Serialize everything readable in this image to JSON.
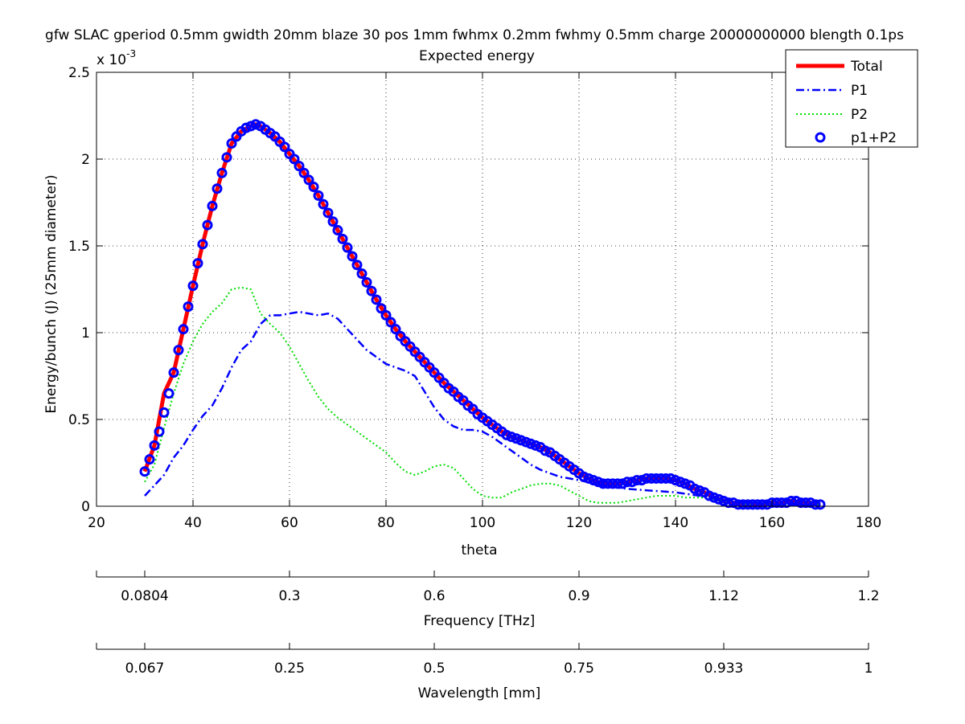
{
  "chart_data": {
    "type": "line",
    "title": "gfw SLAC gperiod 0.5mm gwidth 20mm blaze 30 pos 1mm fwhmx 0.2mm fwhmy 0.5mm charge 20000000000 blength 0.1ps",
    "subtitle": "Expected energy",
    "xlabel": "theta",
    "ylabel": "Energy/bunch (J)  (25mm diameter)",
    "y_multiplier": "x 10",
    "y_exponent": "-3",
    "xlim": [
      20,
      180
    ],
    "ylim": [
      0,
      0.0025
    ],
    "x_ticks": [
      20,
      40,
      60,
      80,
      100,
      120,
      140,
      160,
      180
    ],
    "y_ticks": [
      0,
      0.0005,
      0.001,
      0.0015,
      0.002,
      0.0025
    ],
    "x_tick_labels": [
      "20",
      "40",
      "60",
      "80",
      "100",
      "120",
      "140",
      "160",
      "180"
    ],
    "y_tick_labels": [
      "0",
      "0.5",
      "1",
      "1.5",
      "2",
      "2.5"
    ],
    "grid": true,
    "legend_position": "top-right",
    "secondary_axes": [
      {
        "label": "Frequency [THz]",
        "ticks_theta": [
          30,
          60,
          90,
          120,
          150,
          180
        ],
        "tick_labels": [
          "0.0804",
          "0.3",
          "0.6",
          "0.9",
          "1.12",
          "1.2"
        ]
      },
      {
        "label": "Wavelength [mm]",
        "ticks_theta": [
          30,
          60,
          90,
          120,
          150,
          180
        ],
        "tick_labels": [
          "0.067",
          "0.25",
          "0.5",
          "0.75",
          "0.933",
          "1"
        ]
      }
    ],
    "series": [
      {
        "name": "Total",
        "color": "#ff0000",
        "style": "solid-thick",
        "x": [
          30,
          32,
          34,
          36,
          38,
          40,
          42,
          44,
          46,
          48,
          50,
          52,
          53,
          54,
          56,
          58,
          60,
          62,
          64,
          66,
          68,
          70,
          72,
          74,
          76,
          78,
          80,
          82,
          84,
          86,
          88,
          90,
          92,
          94,
          96,
          98,
          100,
          102,
          104,
          106,
          108,
          110,
          112,
          114,
          116,
          118,
          120,
          122,
          124,
          126,
          128,
          130,
          132,
          134,
          136,
          138,
          140,
          142,
          144,
          146,
          148,
          150,
          152,
          154,
          156,
          158,
          160,
          162,
          164,
          166,
          168,
          170
        ],
        "y": [
          0.0002,
          0.00035,
          0.00065,
          0.00077,
          0.00102,
          0.00127,
          0.00151,
          0.00173,
          0.00192,
          0.00209,
          0.00216,
          0.00219,
          0.0022,
          0.00219,
          0.00215,
          0.0021,
          0.00203,
          0.00196,
          0.00188,
          0.00179,
          0.00169,
          0.00159,
          0.00149,
          0.00139,
          0.00129,
          0.00119,
          0.0011,
          0.00102,
          0.00095,
          0.00089,
          0.00083,
          0.00077,
          0.00071,
          0.00066,
          0.00061,
          0.00056,
          0.00051,
          0.00047,
          0.00043,
          0.0004,
          0.00038,
          0.00036,
          0.00034,
          0.00031,
          0.00027,
          0.00023,
          0.00019,
          0.00016,
          0.00014,
          0.00013,
          0.00013,
          0.00014,
          0.00015,
          0.00016,
          0.00016,
          0.00016,
          0.00015,
          0.00013,
          0.0001,
          8e-05,
          5e-05,
          3e-05,
          2e-05,
          1e-05,
          1e-05,
          1e-05,
          2e-05,
          2e-05,
          3e-05,
          2e-05,
          2e-05,
          1e-05
        ]
      },
      {
        "name": "P1",
        "color": "#0000ff",
        "style": "dashdot",
        "x": [
          30,
          32,
          34,
          36,
          38,
          40,
          42,
          44,
          46,
          48,
          50,
          52,
          54,
          56,
          58,
          60,
          62,
          64,
          66,
          68,
          70,
          72,
          74,
          76,
          78,
          80,
          82,
          84,
          86,
          88,
          90,
          92,
          94,
          96,
          98,
          100,
          102,
          104,
          106,
          108,
          110,
          112,
          114,
          116,
          118,
          120,
          125,
          130,
          135,
          140,
          145,
          150,
          155,
          160,
          165,
          170
        ],
        "y": [
          6e-05,
          0.00012,
          0.00018,
          0.00028,
          0.00035,
          0.00044,
          0.00052,
          0.00058,
          0.00068,
          0.0008,
          0.0009,
          0.00095,
          0.00105,
          0.0011,
          0.0011,
          0.00111,
          0.00112,
          0.00111,
          0.0011,
          0.00111,
          0.00108,
          0.00102,
          0.00096,
          0.0009,
          0.00086,
          0.00082,
          0.0008,
          0.00078,
          0.00075,
          0.00066,
          0.00057,
          0.0005,
          0.00046,
          0.00044,
          0.00044,
          0.00043,
          0.0004,
          0.00036,
          0.00032,
          0.00028,
          0.00024,
          0.00021,
          0.00019,
          0.00017,
          0.00016,
          0.00015,
          0.00012,
          0.0001,
          9e-05,
          8e-05,
          6e-05,
          4e-05,
          2e-05,
          1e-05,
          1e-05,
          1e-05
        ]
      },
      {
        "name": "P2",
        "color": "#00dd00",
        "style": "dotted",
        "x": [
          30,
          32,
          34,
          36,
          38,
          40,
          42,
          44,
          46,
          48,
          50,
          52,
          54,
          56,
          58,
          60,
          62,
          64,
          66,
          68,
          70,
          72,
          74,
          76,
          78,
          80,
          82,
          84,
          86,
          88,
          90,
          92,
          94,
          96,
          98,
          100,
          102,
          104,
          106,
          108,
          110,
          112,
          114,
          116,
          118,
          120,
          122,
          124,
          126,
          128,
          130,
          132,
          134,
          136,
          138,
          140,
          142,
          144,
          146,
          148,
          150,
          155,
          160,
          165,
          170
        ],
        "y": [
          0.00014,
          0.00024,
          0.00045,
          0.00065,
          0.00082,
          0.00095,
          0.00105,
          0.00112,
          0.00117,
          0.00125,
          0.00126,
          0.00125,
          0.00111,
          0.00105,
          0.001,
          0.00092,
          0.00082,
          0.00072,
          0.00063,
          0.00056,
          0.00051,
          0.00047,
          0.00043,
          0.00039,
          0.00035,
          0.00031,
          0.00025,
          0.0002,
          0.00018,
          0.0002,
          0.00023,
          0.00024,
          0.00022,
          0.00016,
          0.0001,
          6e-05,
          5e-05,
          5e-05,
          8e-05,
          0.0001,
          0.00012,
          0.00013,
          0.00013,
          0.00012,
          9e-05,
          6e-05,
          3e-05,
          2e-05,
          2e-05,
          2e-05,
          3e-05,
          4e-05,
          5e-05,
          6e-05,
          6e-05,
          6e-05,
          5e-05,
          5e-05,
          5e-05,
          4e-05,
          3e-05,
          1e-05,
          1e-05,
          1e-05,
          1e-05
        ]
      },
      {
        "name": "p1+P2",
        "color": "#0000ff",
        "style": "circles",
        "x": [
          30,
          31,
          32,
          33,
          34,
          35,
          36,
          37,
          38,
          39,
          40,
          41,
          42,
          43,
          44,
          45,
          46,
          47,
          48,
          49,
          50,
          51,
          52,
          53,
          54,
          55,
          56,
          57,
          58,
          59,
          60,
          61,
          62,
          63,
          64,
          65,
          66,
          67,
          68,
          69,
          70,
          71,
          72,
          73,
          74,
          75,
          76,
          77,
          78,
          79,
          80,
          81,
          82,
          83,
          84,
          85,
          86,
          87,
          88,
          89,
          90,
          91,
          92,
          93,
          94,
          95,
          96,
          97,
          98,
          99,
          100,
          101,
          102,
          103,
          104,
          105,
          106,
          107,
          108,
          109,
          110,
          111,
          112,
          113,
          114,
          115,
          116,
          117,
          118,
          119,
          120,
          121,
          122,
          123,
          124,
          125,
          126,
          127,
          128,
          129,
          130,
          131,
          132,
          133,
          134,
          135,
          136,
          137,
          138,
          139,
          140,
          141,
          142,
          143,
          144,
          145,
          146,
          147,
          148,
          149,
          150,
          151,
          152,
          153,
          154,
          155,
          156,
          157,
          158,
          159,
          160,
          161,
          162,
          163,
          164,
          165,
          166,
          167,
          168,
          169,
          170
        ],
        "y": [
          0.0002,
          0.00027,
          0.00035,
          0.00043,
          0.00054,
          0.00065,
          0.00077,
          0.0009,
          0.00102,
          0.00115,
          0.00127,
          0.0014,
          0.00151,
          0.00162,
          0.00173,
          0.00183,
          0.00192,
          0.00201,
          0.00209,
          0.00213,
          0.00216,
          0.00218,
          0.00219,
          0.0022,
          0.00219,
          0.00217,
          0.00215,
          0.00213,
          0.0021,
          0.00207,
          0.00203,
          0.002,
          0.00196,
          0.00192,
          0.00188,
          0.00184,
          0.00179,
          0.00174,
          0.00169,
          0.00164,
          0.00159,
          0.00154,
          0.00149,
          0.00144,
          0.00139,
          0.00134,
          0.00129,
          0.00124,
          0.00119,
          0.00114,
          0.0011,
          0.00106,
          0.00102,
          0.00098,
          0.00095,
          0.00092,
          0.00089,
          0.00086,
          0.00083,
          0.0008,
          0.00077,
          0.00074,
          0.00071,
          0.00068,
          0.00066,
          0.00063,
          0.00061,
          0.00058,
          0.00056,
          0.00053,
          0.00051,
          0.00049,
          0.00047,
          0.00045,
          0.00043,
          0.00041,
          0.0004,
          0.00039,
          0.00038,
          0.00037,
          0.00036,
          0.00035,
          0.00034,
          0.00032,
          0.00031,
          0.00029,
          0.00027,
          0.00025,
          0.00023,
          0.00021,
          0.00019,
          0.00017,
          0.00016,
          0.00015,
          0.00014,
          0.00013,
          0.00013,
          0.00013,
          0.00013,
          0.00013,
          0.00014,
          0.00014,
          0.00015,
          0.00015,
          0.00016,
          0.00016,
          0.00016,
          0.00016,
          0.00016,
          0.00016,
          0.00015,
          0.00014,
          0.00013,
          0.00012,
          0.0001,
          9e-05,
          8e-05,
          6e-05,
          5e-05,
          4e-05,
          3e-05,
          2e-05,
          2e-05,
          1e-05,
          1e-05,
          1e-05,
          1e-05,
          1e-05,
          1e-05,
          1e-05,
          2e-05,
          2e-05,
          2e-05,
          2e-05,
          3e-05,
          3e-05,
          2e-05,
          2e-05,
          2e-05,
          1e-05,
          1e-05
        ]
      }
    ]
  }
}
